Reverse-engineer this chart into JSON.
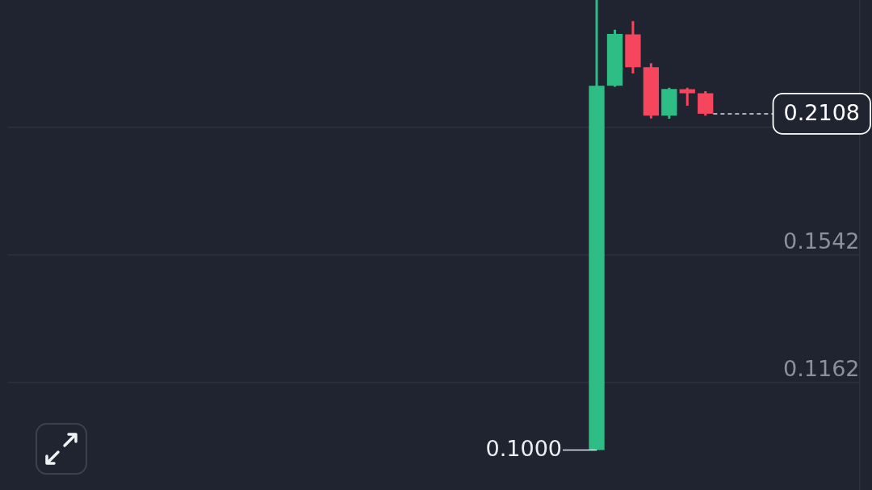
{
  "chart_data": {
    "type": "candlestick",
    "categories": [
      null,
      null,
      null,
      null,
      null,
      null,
      null,
      null,
      null,
      null,
      null,
      null,
      null,
      null,
      null,
      null,
      null,
      null,
      null,
      null,
      null,
      null,
      null,
      null,
      null,
      null,
      null,
      null,
      null,
      null,
      null,
      null,
      null,
      null,
      null,
      null,
      null,
      null,
      null,
      null,
      null,
      null,
      null,
      null,
      null,
      null,
      null
    ],
    "ohlc": [
      null,
      null,
      null,
      null,
      null,
      null,
      null,
      null,
      null,
      null,
      null,
      null,
      null,
      null,
      null,
      null,
      null,
      null,
      null,
      null,
      null,
      null,
      null,
      null,
      null,
      null,
      null,
      null,
      null,
      null,
      null,
      null,
      [
        0.1,
        0.2713,
        0.1,
        0.2243
      ],
      [
        0.2243,
        0.254,
        0.2238,
        0.2516
      ],
      [
        0.2514,
        0.2589,
        0.2305,
        0.2337
      ],
      [
        0.2337,
        0.2358,
        0.2086,
        0.2099
      ],
      [
        0.2099,
        0.2233,
        0.2085,
        0.2227
      ],
      [
        0.2226,
        0.2233,
        0.2146,
        0.2206
      ],
      [
        0.2206,
        0.2216,
        0.2099,
        0.2108
      ],
      null,
      null,
      null,
      null,
      null,
      null,
      null,
      null
    ],
    "colors": [
      null,
      null,
      null,
      null,
      null,
      null,
      null,
      null,
      null,
      null,
      null,
      null,
      null,
      null,
      null,
      null,
      null,
      null,
      null,
      null,
      null,
      null,
      null,
      null,
      null,
      null,
      null,
      null,
      null,
      null,
      null,
      null,
      "#2ebd85",
      "#2ebd85",
      "#f6465d",
      "#f6465d",
      "#2ebd85",
      "#f6465d",
      "#f6465d",
      null,
      null,
      null,
      null,
      null,
      null,
      null,
      null
    ],
    "ylim": [
      0.0915,
      0.2713
    ],
    "yticks": [
      0.1162,
      0.1542,
      {
        "value": 0.2046,
        "label": null
      }
    ],
    "log": true,
    "grid": "y",
    "tick_labels": "y",
    "ref_lines": [
      {
        "axis": "y",
        "value": 0.2108,
        "label": "0.2108",
        "color": "#ffffff",
        "line_style": "dashed"
      }
    ],
    "annotations": [
      "0.1000"
    ]
  }
}
